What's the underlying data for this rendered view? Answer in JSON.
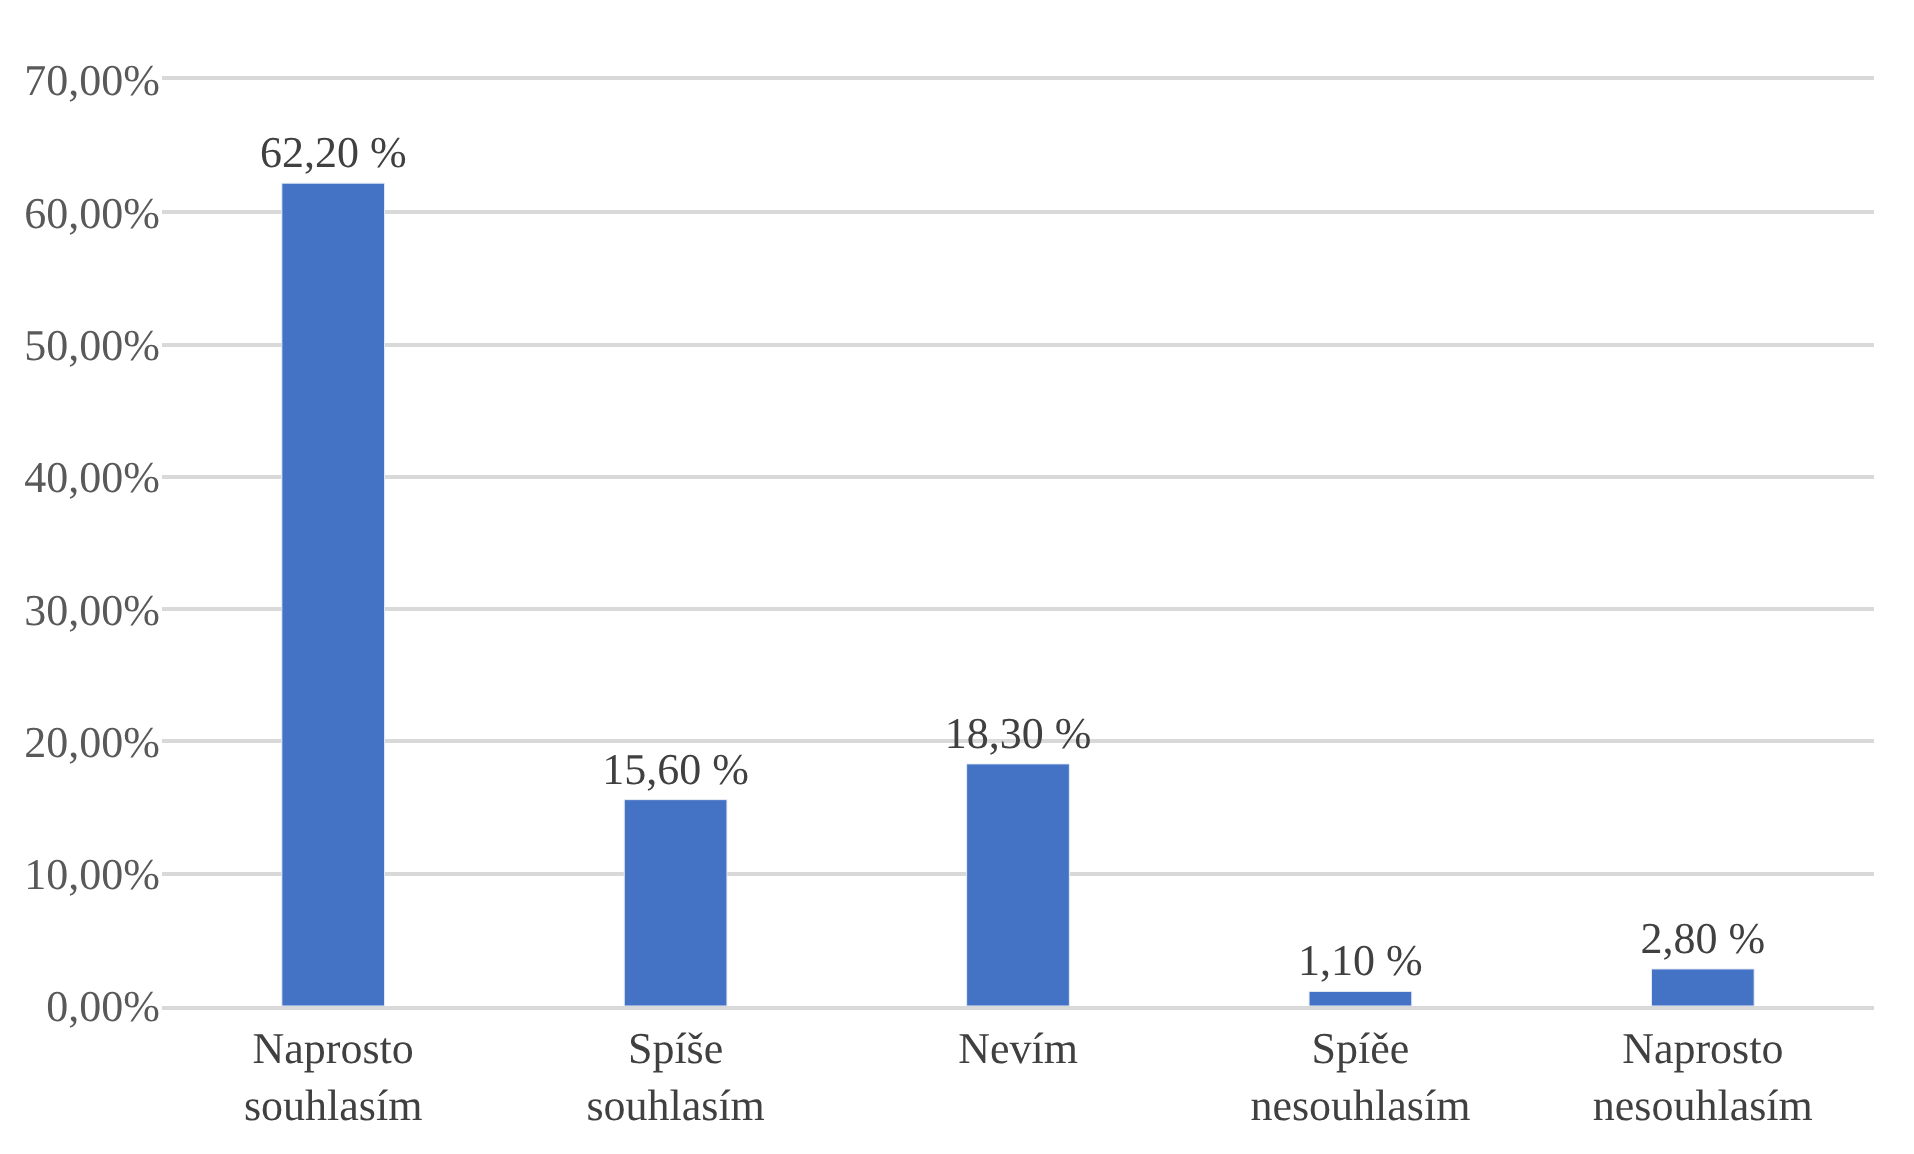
{
  "chart_data": {
    "type": "bar",
    "categories": [
      "Naprosto souhlasím",
      "Spíše souhlasím",
      "Nevím",
      "Spíěe nesouhlasím",
      "Naprosto nesouhlasím"
    ],
    "values": [
      62.2,
      15.6,
      18.3,
      1.1,
      2.8
    ],
    "value_labels": [
      "62,20 %",
      "15,60 %",
      "18,30 %",
      "1,10 %",
      "2,80 %"
    ],
    "color": "#4472c4",
    "ylim": [
      0,
      70
    ],
    "yticks": [
      {
        "value": 0,
        "label": "0,00%"
      },
      {
        "value": 10,
        "label": "10,00%"
      },
      {
        "value": 20,
        "label": "20,00%"
      },
      {
        "value": 30,
        "label": "30,00%"
      },
      {
        "value": 40,
        "label": "40,00%"
      },
      {
        "value": 50,
        "label": "50,00%"
      },
      {
        "value": 60,
        "label": "60,00%"
      },
      {
        "value": 70,
        "label": "70,00%"
      }
    ],
    "grid": "y"
  }
}
